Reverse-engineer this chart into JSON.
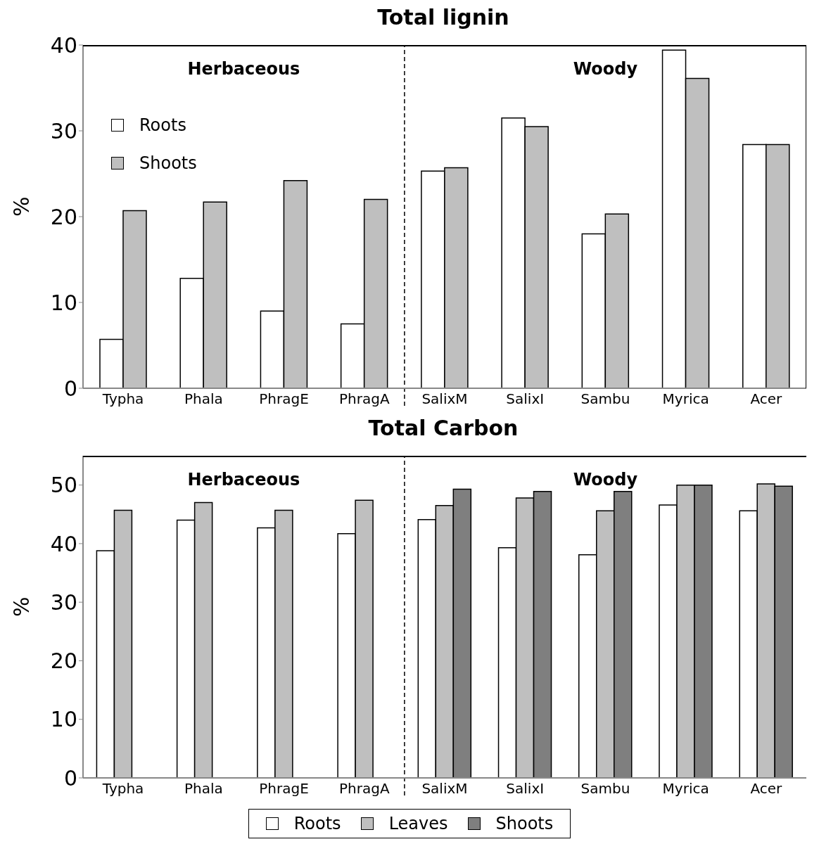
{
  "chart_data": [
    {
      "type": "bar",
      "title": "Total lignin",
      "ylabel": "%",
      "categories": [
        "Typha",
        "Phala",
        "PhragE",
        "PhragA",
        "SalixM",
        "SalixI",
        "Sambu",
        "Myrica",
        "Acer"
      ],
      "series": [
        {
          "name": "Roots",
          "color": "#ffffff",
          "values": [
            5.7,
            12.8,
            9.0,
            7.5,
            25.3,
            31.5,
            18.0,
            39.4,
            28.4
          ]
        },
        {
          "name": "Shoots",
          "color": "#bfbfbf",
          "values": [
            20.7,
            21.7,
            24.2,
            22.0,
            25.7,
            30.5,
            20.3,
            36.1,
            28.4
          ]
        }
      ],
      "ylim": [
        0,
        40
      ],
      "yticks": [
        0,
        10,
        20,
        30,
        40
      ],
      "legend": "top left",
      "annotations": [
        "Herbaceous",
        "Woody"
      ]
    },
    {
      "type": "bar",
      "title": "Total Carbon",
      "ylabel": "%",
      "categories": [
        "Typha",
        "Phala",
        "PhragE",
        "PhragA",
        "SalixM",
        "SalixI",
        "Sambu",
        "Myrica",
        "Acer"
      ],
      "series": [
        {
          "name": "Roots",
          "color": "#ffffff",
          "values": [
            38.8,
            44.0,
            42.7,
            41.7,
            44.1,
            39.3,
            38.1,
            46.6,
            45.6
          ]
        },
        {
          "name": "Leaves",
          "color": "#bfbfbf",
          "values": [
            45.7,
            47.0,
            45.7,
            47.4,
            46.5,
            47.8,
            45.6,
            50.0,
            50.2
          ]
        },
        {
          "name": "Shoots",
          "color": "#7f7f7f",
          "values": [
            null,
            null,
            null,
            null,
            49.3,
            48.9,
            48.9,
            50.0,
            49.8
          ]
        }
      ],
      "ylim": [
        0,
        55
      ],
      "yticks": [
        0,
        10,
        20,
        30,
        40,
        50
      ],
      "legend": "bottom",
      "annotations": [
        "Herbaceous",
        "Woody"
      ]
    }
  ]
}
